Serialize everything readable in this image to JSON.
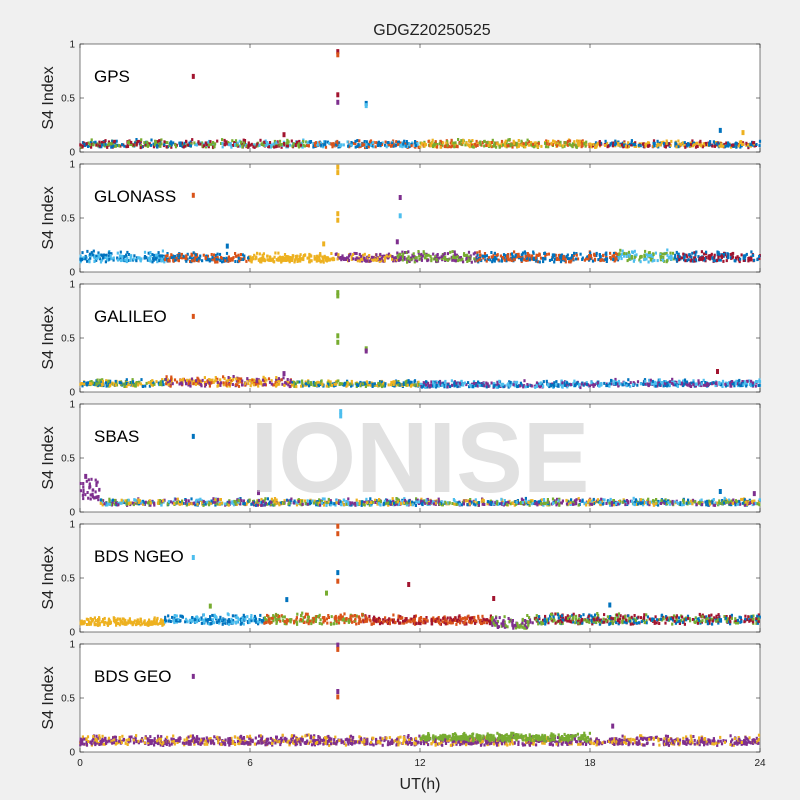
{
  "title": "GDGZ20250525",
  "watermark": "IONISE",
  "chart_data": {
    "type": "scatter",
    "title": "GDGZ20250525",
    "xlabel": "UT(h)",
    "ylabel": "S4 Index",
    "xlim": [
      0,
      24
    ],
    "ylim": [
      0,
      1
    ],
    "xticks": [
      0,
      6,
      12,
      18,
      24
    ],
    "xtick_labels": [
      "0",
      "6",
      "12",
      "18",
      "24"
    ],
    "yticks": [
      0,
      0.5,
      1
    ],
    "ytick_labels": [
      "0",
      "0.5",
      "1"
    ],
    "grid": false,
    "colors": [
      "#0072BD",
      "#D95319",
      "#EDB120",
      "#7E2F8E",
      "#77AC30",
      "#4DBEEE",
      "#A2142F"
    ],
    "panels": [
      {
        "system": "GPS",
        "legend_color": "#A2142F",
        "band": [
          {
            "from": 0,
            "to": 4,
            "low": 0.04,
            "high": 0.12,
            "colors": [
              "#A2142F",
              "#77AC30",
              "#0072BD"
            ]
          },
          {
            "from": 4,
            "to": 8,
            "low": 0.04,
            "high": 0.12,
            "colors": [
              "#A2142F",
              "#4DBEEE",
              "#77AC30"
            ]
          },
          {
            "from": 8,
            "to": 12,
            "low": 0.04,
            "high": 0.11,
            "colors": [
              "#4DBEEE",
              "#0072BD",
              "#D95319"
            ]
          },
          {
            "from": 12,
            "to": 18,
            "low": 0.04,
            "high": 0.12,
            "colors": [
              "#EDB120",
              "#D95319",
              "#77AC30"
            ]
          },
          {
            "from": 18,
            "to": 24,
            "low": 0.04,
            "high": 0.11,
            "colors": [
              "#0072BD",
              "#A2142F",
              "#EDB120"
            ]
          }
        ],
        "outliers": [
          {
            "x": 4.0,
            "y": 0.7,
            "color": "#A2142F"
          },
          {
            "x": 9.1,
            "y": 0.93,
            "color": "#A2142F"
          },
          {
            "x": 9.1,
            "y": 0.9,
            "color": "#D95319"
          },
          {
            "x": 9.1,
            "y": 0.53,
            "color": "#A2142F"
          },
          {
            "x": 9.1,
            "y": 0.46,
            "color": "#7E2F8E"
          },
          {
            "x": 10.1,
            "y": 0.45,
            "color": "#0072BD"
          },
          {
            "x": 10.1,
            "y": 0.43,
            "color": "#4DBEEE"
          },
          {
            "x": 7.2,
            "y": 0.16,
            "color": "#A2142F"
          },
          {
            "x": 22.6,
            "y": 0.2,
            "color": "#0072BD"
          },
          {
            "x": 23.4,
            "y": 0.18,
            "color": "#EDB120"
          }
        ]
      },
      {
        "system": "GLONASS",
        "legend_color": "#D95319",
        "band": [
          {
            "from": 0,
            "to": 3,
            "low": 0.09,
            "high": 0.2,
            "colors": [
              "#0072BD",
              "#4DBEEE"
            ]
          },
          {
            "from": 3,
            "to": 6,
            "low": 0.09,
            "high": 0.18,
            "colors": [
              "#D95319",
              "#0072BD"
            ]
          },
          {
            "from": 6,
            "to": 9,
            "low": 0.09,
            "high": 0.18,
            "colors": [
              "#EDB120"
            ]
          },
          {
            "from": 9,
            "to": 11.2,
            "low": 0.09,
            "high": 0.18,
            "colors": [
              "#EDB120",
              "#7E2F8E"
            ]
          },
          {
            "from": 11.2,
            "to": 14,
            "low": 0.09,
            "high": 0.2,
            "colors": [
              "#77AC30",
              "#7E2F8E"
            ]
          },
          {
            "from": 14,
            "to": 19,
            "low": 0.09,
            "high": 0.2,
            "colors": [
              "#D95319",
              "#0072BD"
            ]
          },
          {
            "from": 19,
            "to": 21,
            "low": 0.09,
            "high": 0.22,
            "colors": [
              "#77AC30",
              "#4DBEEE"
            ]
          },
          {
            "from": 21,
            "to": 24,
            "low": 0.09,
            "high": 0.2,
            "colors": [
              "#A2142F",
              "#0072BD"
            ]
          }
        ],
        "outliers": [
          {
            "x": 4.0,
            "y": 0.71,
            "color": "#D95319"
          },
          {
            "x": 9.1,
            "y": 0.97,
            "color": "#EDB120"
          },
          {
            "x": 9.1,
            "y": 0.92,
            "color": "#EDB120"
          },
          {
            "x": 9.1,
            "y": 0.54,
            "color": "#EDB120"
          },
          {
            "x": 9.1,
            "y": 0.48,
            "color": "#EDB120"
          },
          {
            "x": 11.3,
            "y": 0.69,
            "color": "#7E2F8E"
          },
          {
            "x": 11.3,
            "y": 0.52,
            "color": "#4DBEEE"
          },
          {
            "x": 11.2,
            "y": 0.28,
            "color": "#7E2F8E"
          },
          {
            "x": 8.6,
            "y": 0.26,
            "color": "#EDB120"
          },
          {
            "x": 5.2,
            "y": 0.24,
            "color": "#0072BD"
          }
        ]
      },
      {
        "system": "GALILEO",
        "legend_color": "#D95319",
        "band": [
          {
            "from": 0,
            "to": 3,
            "low": 0.05,
            "high": 0.12,
            "colors": [
              "#77AC30",
              "#EDB120",
              "#0072BD"
            ]
          },
          {
            "from": 3,
            "to": 7.5,
            "low": 0.05,
            "high": 0.15,
            "colors": [
              "#EDB120",
              "#7E2F8E",
              "#D95319"
            ]
          },
          {
            "from": 7.5,
            "to": 12,
            "low": 0.05,
            "high": 0.11,
            "colors": [
              "#77AC30",
              "#EDB120",
              "#0072BD"
            ]
          },
          {
            "from": 12,
            "to": 18,
            "low": 0.04,
            "high": 0.11,
            "colors": [
              "#0072BD",
              "#7E2F8E",
              "#4DBEEE"
            ]
          },
          {
            "from": 18,
            "to": 24,
            "low": 0.05,
            "high": 0.12,
            "colors": [
              "#0072BD",
              "#4DBEEE",
              "#7E2F8E"
            ]
          }
        ],
        "outliers": [
          {
            "x": 4.0,
            "y": 0.7,
            "color": "#D95319"
          },
          {
            "x": 9.1,
            "y": 0.92,
            "color": "#77AC30"
          },
          {
            "x": 9.1,
            "y": 0.89,
            "color": "#77AC30"
          },
          {
            "x": 9.1,
            "y": 0.52,
            "color": "#77AC30"
          },
          {
            "x": 9.1,
            "y": 0.46,
            "color": "#77AC30"
          },
          {
            "x": 10.1,
            "y": 0.4,
            "color": "#77AC30"
          },
          {
            "x": 10.1,
            "y": 0.38,
            "color": "#7E2F8E"
          },
          {
            "x": 7.2,
            "y": 0.17,
            "color": "#7E2F8E"
          },
          {
            "x": 22.5,
            "y": 0.19,
            "color": "#A2142F"
          }
        ]
      },
      {
        "system": "SBAS",
        "legend_color": "#0072BD",
        "band": [
          {
            "from": 0,
            "to": 0.7,
            "low": 0.1,
            "high": 0.36,
            "colors": [
              "#7E2F8E"
            ]
          },
          {
            "from": 0.7,
            "to": 24,
            "low": 0.06,
            "high": 0.13,
            "colors": [
              "#4DBEEE",
              "#0072BD",
              "#77AC30",
              "#EDB120",
              "#7E2F8E"
            ]
          }
        ],
        "outliers": [
          {
            "x": 4.0,
            "y": 0.7,
            "color": "#0072BD"
          },
          {
            "x": 9.2,
            "y": 0.93,
            "color": "#4DBEEE"
          },
          {
            "x": 9.2,
            "y": 0.89,
            "color": "#4DBEEE"
          },
          {
            "x": 0.2,
            "y": 0.33,
            "color": "#7E2F8E"
          },
          {
            "x": 23.8,
            "y": 0.17,
            "color": "#7E2F8E"
          },
          {
            "x": 22.6,
            "y": 0.19,
            "color": "#0072BD"
          },
          {
            "x": 6.3,
            "y": 0.18,
            "color": "#7E2F8E"
          }
        ]
      },
      {
        "system": "BDS NGEO",
        "legend_color": "#4DBEEE",
        "band": [
          {
            "from": 0,
            "to": 3,
            "low": 0.06,
            "high": 0.14,
            "colors": [
              "#EDB120"
            ]
          },
          {
            "from": 3,
            "to": 6.5,
            "low": 0.07,
            "high": 0.18,
            "colors": [
              "#4DBEEE",
              "#0072BD"
            ]
          },
          {
            "from": 6.5,
            "to": 10,
            "low": 0.07,
            "high": 0.18,
            "colors": [
              "#D95319",
              "#77AC30"
            ]
          },
          {
            "from": 10,
            "to": 14.5,
            "low": 0.07,
            "high": 0.16,
            "colors": [
              "#D95319",
              "#A2142F"
            ]
          },
          {
            "from": 14.5,
            "to": 16,
            "low": 0.03,
            "high": 0.16,
            "colors": [
              "#77AC30",
              "#7E2F8E"
            ]
          },
          {
            "from": 16,
            "to": 24,
            "low": 0.07,
            "high": 0.18,
            "colors": [
              "#A2142F",
              "#77AC30",
              "#0072BD"
            ]
          }
        ],
        "outliers": [
          {
            "x": 4.0,
            "y": 0.69,
            "color": "#4DBEEE"
          },
          {
            "x": 9.1,
            "y": 0.98,
            "color": "#D95319"
          },
          {
            "x": 9.1,
            "y": 0.91,
            "color": "#D95319"
          },
          {
            "x": 9.1,
            "y": 0.55,
            "color": "#0072BD"
          },
          {
            "x": 9.1,
            "y": 0.47,
            "color": "#D95319"
          },
          {
            "x": 11.6,
            "y": 0.44,
            "color": "#A2142F"
          },
          {
            "x": 14.6,
            "y": 0.31,
            "color": "#A2142F"
          },
          {
            "x": 7.3,
            "y": 0.3,
            "color": "#0072BD"
          },
          {
            "x": 8.7,
            "y": 0.36,
            "color": "#77AC30"
          },
          {
            "x": 4.6,
            "y": 0.24,
            "color": "#77AC30"
          },
          {
            "x": 18.7,
            "y": 0.25,
            "color": "#0072BD"
          }
        ]
      },
      {
        "system": "BDS GEO",
        "legend_color": "#7E2F8E",
        "band": [
          {
            "from": 0,
            "to": 24,
            "low": 0.06,
            "high": 0.16,
            "colors": [
              "#7E2F8E",
              "#EDB120",
              "#7E2F8E"
            ]
          },
          {
            "from": 12,
            "to": 18,
            "low": 0.1,
            "high": 0.18,
            "colors": [
              "#77AC30"
            ]
          }
        ],
        "outliers": [
          {
            "x": 4.0,
            "y": 0.7,
            "color": "#7E2F8E"
          },
          {
            "x": 9.1,
            "y": 0.99,
            "color": "#7E2F8E"
          },
          {
            "x": 9.1,
            "y": 0.95,
            "color": "#D95319"
          },
          {
            "x": 9.1,
            "y": 0.56,
            "color": "#7E2F8E"
          },
          {
            "x": 9.1,
            "y": 0.51,
            "color": "#D95319"
          },
          {
            "x": 18.8,
            "y": 0.24,
            "color": "#7E2F8E"
          }
        ]
      }
    ]
  }
}
